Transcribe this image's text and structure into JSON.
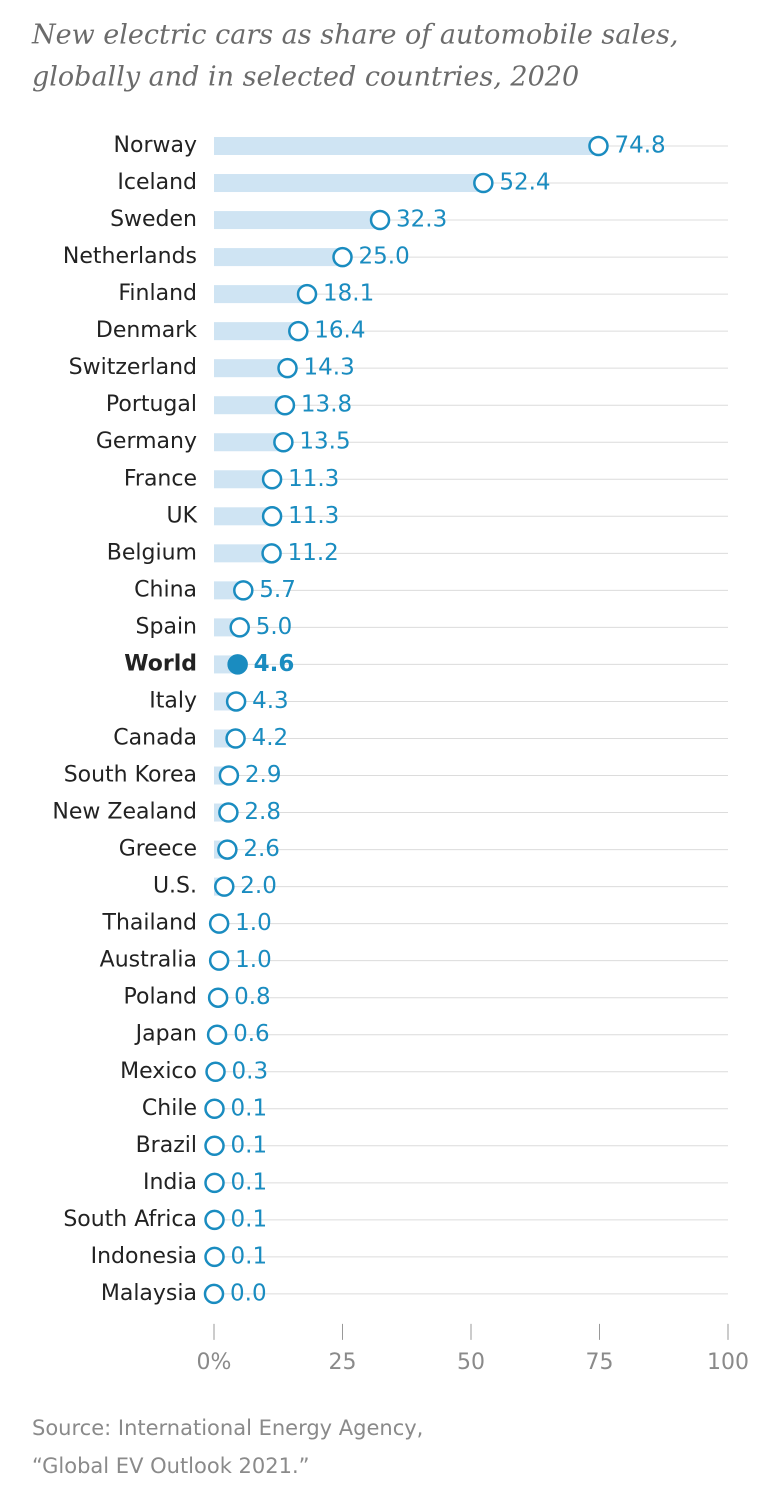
{
  "chart_data": {
    "type": "dot",
    "title": [
      "New electric cars as share of automobile sales,",
      "globally and in selected countries, 2020"
    ],
    "categories": [
      "Norway",
      "Iceland",
      "Sweden",
      "Netherlands",
      "Finland",
      "Denmark",
      "Switzerland",
      "Portugal",
      "Germany",
      "France",
      "UK",
      "Belgium",
      "China",
      "Spain",
      "World",
      "Italy",
      "Canada",
      "South Korea",
      "New Zealand",
      "Greece",
      "U.S.",
      "Thailand",
      "Australia",
      "Poland",
      "Japan",
      "Mexico",
      "Chile",
      "Brazil",
      "India",
      "South Africa",
      "Indonesia",
      "Malaysia"
    ],
    "values": [
      74.8,
      52.4,
      32.3,
      25.0,
      18.1,
      16.4,
      14.3,
      13.8,
      13.5,
      11.3,
      11.3,
      11.2,
      5.7,
      5.0,
      4.6,
      4.3,
      4.2,
      2.9,
      2.8,
      2.6,
      2.0,
      1.0,
      1.0,
      0.8,
      0.6,
      0.3,
      0.1,
      0.1,
      0.1,
      0.1,
      0.1,
      0.0
    ],
    "value_labels": [
      "74.8",
      "52.4",
      "32.3",
      "25.0",
      "18.1",
      "16.4",
      "14.3",
      "13.8",
      "13.5",
      "11.3",
      "11.3",
      "11.2",
      "5.7",
      "5.0",
      "4.6",
      "4.3",
      "4.2",
      "2.9",
      "2.8",
      "2.6",
      "2.0",
      "1.0",
      "1.0",
      "0.8",
      "0.6",
      "0.3",
      "0.1",
      "0.1",
      "0.1",
      "0.1",
      "0.1",
      "0.0"
    ],
    "highlight_category": "World",
    "color": "#1a8cc0",
    "bar_color": "#cfe4f3",
    "xlim": [
      0,
      100
    ],
    "xticks": [
      {
        "value": 0,
        "label": "0%"
      },
      25,
      50,
      75,
      100
    ],
    "source": [
      "Source: International Energy Agency,",
      "“Global EV Outlook 2021.”"
    ]
  }
}
